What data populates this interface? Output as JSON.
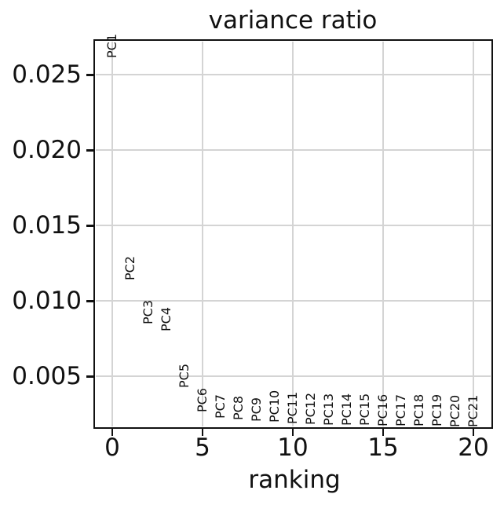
{
  "chart_data": {
    "type": "scatter",
    "title": "variance ratio",
    "xlabel": "ranking",
    "ylabel": "",
    "grid": true,
    "legend": "none",
    "xlim": [
      -1,
      21
    ],
    "ylim": [
      0.00158,
      0.02731
    ],
    "x_ticks": [
      0,
      5,
      10,
      15,
      20
    ],
    "x_tick_labels": [
      "0",
      "5",
      "10",
      "15",
      "20"
    ],
    "y_ticks": [
      0.005,
      0.01,
      0.015,
      0.02,
      0.025
    ],
    "y_tick_labels": [
      "0.005",
      "0.010",
      "0.015",
      "0.020",
      "0.025"
    ],
    "point_label_rotation": "vertical",
    "points": [
      {
        "label": "PC1",
        "x": 0,
        "y": 0.02612
      },
      {
        "label": "PC2",
        "x": 1,
        "y": 0.01138
      },
      {
        "label": "PC3",
        "x": 2,
        "y": 0.00844
      },
      {
        "label": "PC4",
        "x": 3,
        "y": 0.008
      },
      {
        "label": "PC5",
        "x": 4,
        "y": 0.00422
      },
      {
        "label": "PC6",
        "x": 5,
        "y": 0.0026
      },
      {
        "label": "PC7",
        "x": 6,
        "y": 0.00219
      },
      {
        "label": "PC8",
        "x": 7,
        "y": 0.0021
      },
      {
        "label": "PC9",
        "x": 8,
        "y": 0.00201
      },
      {
        "label": "PC10",
        "x": 9,
        "y": 0.00193
      },
      {
        "label": "PC11",
        "x": 10,
        "y": 0.00184
      },
      {
        "label": "PC12",
        "x": 11,
        "y": 0.0018
      },
      {
        "label": "PC13",
        "x": 12,
        "y": 0.00176
      },
      {
        "label": "PC14",
        "x": 13,
        "y": 0.00174
      },
      {
        "label": "PC15",
        "x": 14,
        "y": 0.00172
      },
      {
        "label": "PC16",
        "x": 15,
        "y": 0.0017
      },
      {
        "label": "PC17",
        "x": 16,
        "y": 0.00169
      },
      {
        "label": "PC18",
        "x": 17,
        "y": 0.00168
      },
      {
        "label": "PC19",
        "x": 18,
        "y": 0.00166
      },
      {
        "label": "PC20",
        "x": 19,
        "y": 0.00165
      },
      {
        "label": "PC21",
        "x": 20,
        "y": 0.00164
      }
    ],
    "colors": {
      "background": "#ffffff",
      "text": "#111111",
      "spine": "#111111",
      "grid": "#d4d4d4"
    }
  }
}
